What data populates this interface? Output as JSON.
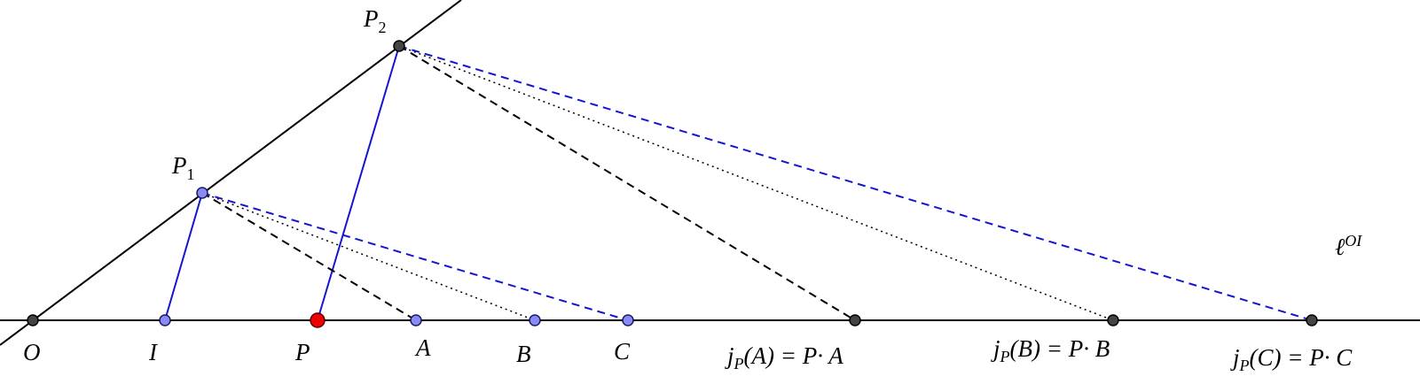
{
  "points": [
    {
      "label": "O"
    },
    {
      "label": "I"
    },
    {
      "label": "P"
    },
    {
      "label": "A"
    },
    {
      "label": "B"
    },
    {
      "label": "C"
    },
    {
      "label": "P",
      "sub": "1"
    },
    {
      "label": "P",
      "sub": "2"
    },
    {
      "label": "j",
      "sub": "P",
      "rest": "(A) = P· A"
    },
    {
      "label": "j",
      "sub": "P",
      "rest": "(B) = P· B"
    },
    {
      "label": "j",
      "sub": "P",
      "rest": "(C) = P· C"
    }
  ],
  "line_label": {
    "base": "ℓ",
    "sup": "OI"
  }
}
